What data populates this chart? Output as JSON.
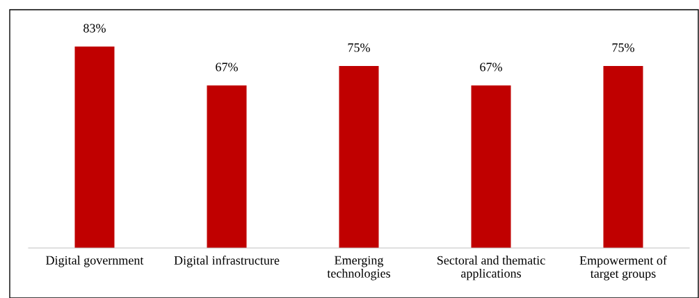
{
  "chart_data": {
    "type": "bar",
    "categories": [
      "Digital government",
      "Digital infrastructure",
      "Emerging\ntechnologies",
      "Sectoral and thematic\napplications",
      "Empowerment of\ntarget groups"
    ],
    "values": [
      83,
      67,
      75,
      67,
      75
    ],
    "value_labels": [
      "83%",
      "67%",
      "75%",
      "67%",
      "75%"
    ],
    "color": "#c00000",
    "grid": false,
    "legend": false
  }
}
